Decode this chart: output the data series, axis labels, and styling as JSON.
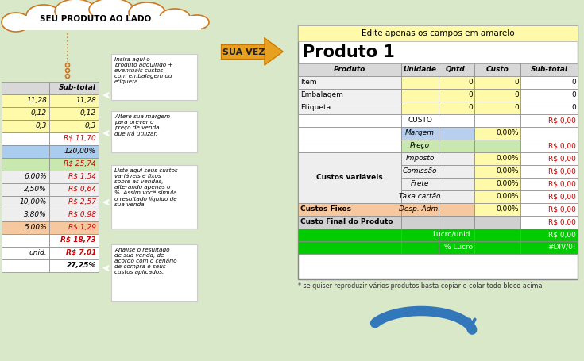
{
  "bg_color": "#d8e8c8",
  "title_header": "Edite apenas os campos em amarelo",
  "title_header_bg": "#fffaaa",
  "product_title": "Produto 1",
  "cloud_text": "SEU PRODUTO AO LADO",
  "arrow_text": "SUA VEZ",
  "note_text": "* se quiser reproduzir vários produtos basta copiar e colar todo bloco acima",
  "callouts": [
    "Insira aqui o\nproduto adquirido +\neventuais custos\ncom embalagem ou\netiqueta",
    "Altere sua margem\npara prever o\npreço de venda\nque irá utilizar.",
    "Liste aqui seus custos\nvariáveis e fixos\nsobre as vendas,\nalterando apenas o\n%. Assim você simula\no resultado líquido de\nsua venda.",
    "Analise o resultado\nde sua venda, de\nacordo com o cenário\nde compra e seus\ncustos aplicados."
  ],
  "left_table_data": [
    [
      "11,28",
      "11,28"
    ],
    [
      "0,12",
      "0,12"
    ],
    [
      "0,3",
      "0,3"
    ],
    [
      "",
      "R$ 11,70"
    ],
    [
      "",
      "120,00%"
    ],
    [
      "",
      "R$ 25,74"
    ],
    [
      "6,00%",
      "R$ 1,54"
    ],
    [
      "2,50%",
      "R$ 0,64"
    ],
    [
      "10,00%",
      "R$ 2,57"
    ],
    [
      "3,80%",
      "R$ 0,98"
    ],
    [
      "5,00%",
      "R$ 1,29"
    ],
    [
      "",
      "R$ 18,73"
    ],
    [
      "unid.",
      "R$ 7,01"
    ],
    [
      "",
      "27,25%"
    ]
  ],
  "left_row_colors": [
    "#fffaaa",
    "#fffaaa",
    "#fffaaa",
    "#ffffff",
    "#aaccee",
    "#c8e8b0",
    "#eeeeee",
    "#eeeeee",
    "#eeeeee",
    "#eeeeee",
    "#f5c8a0",
    "#ffffff",
    "#ffffff",
    "#ffffff"
  ],
  "right_col_headers": [
    "Produto",
    "Unidade",
    "Qntd.",
    "Custo",
    "Sub-total"
  ],
  "right_header_bg": "#d8d8d8",
  "yellow": "#fffaaa",
  "blue_bg": "#b8d0ee",
  "green_bg": "#c8e8b0",
  "orange_bg": "#f5c8a0",
  "gray_bg": "#d0d0d0",
  "green_bright": "#00cc00",
  "white": "#ffffff",
  "cloud_color": "#cc7722",
  "arrow_color": "#e8a020",
  "arrow_border": "#c87800",
  "blue_arrow_color": "#3377bb"
}
